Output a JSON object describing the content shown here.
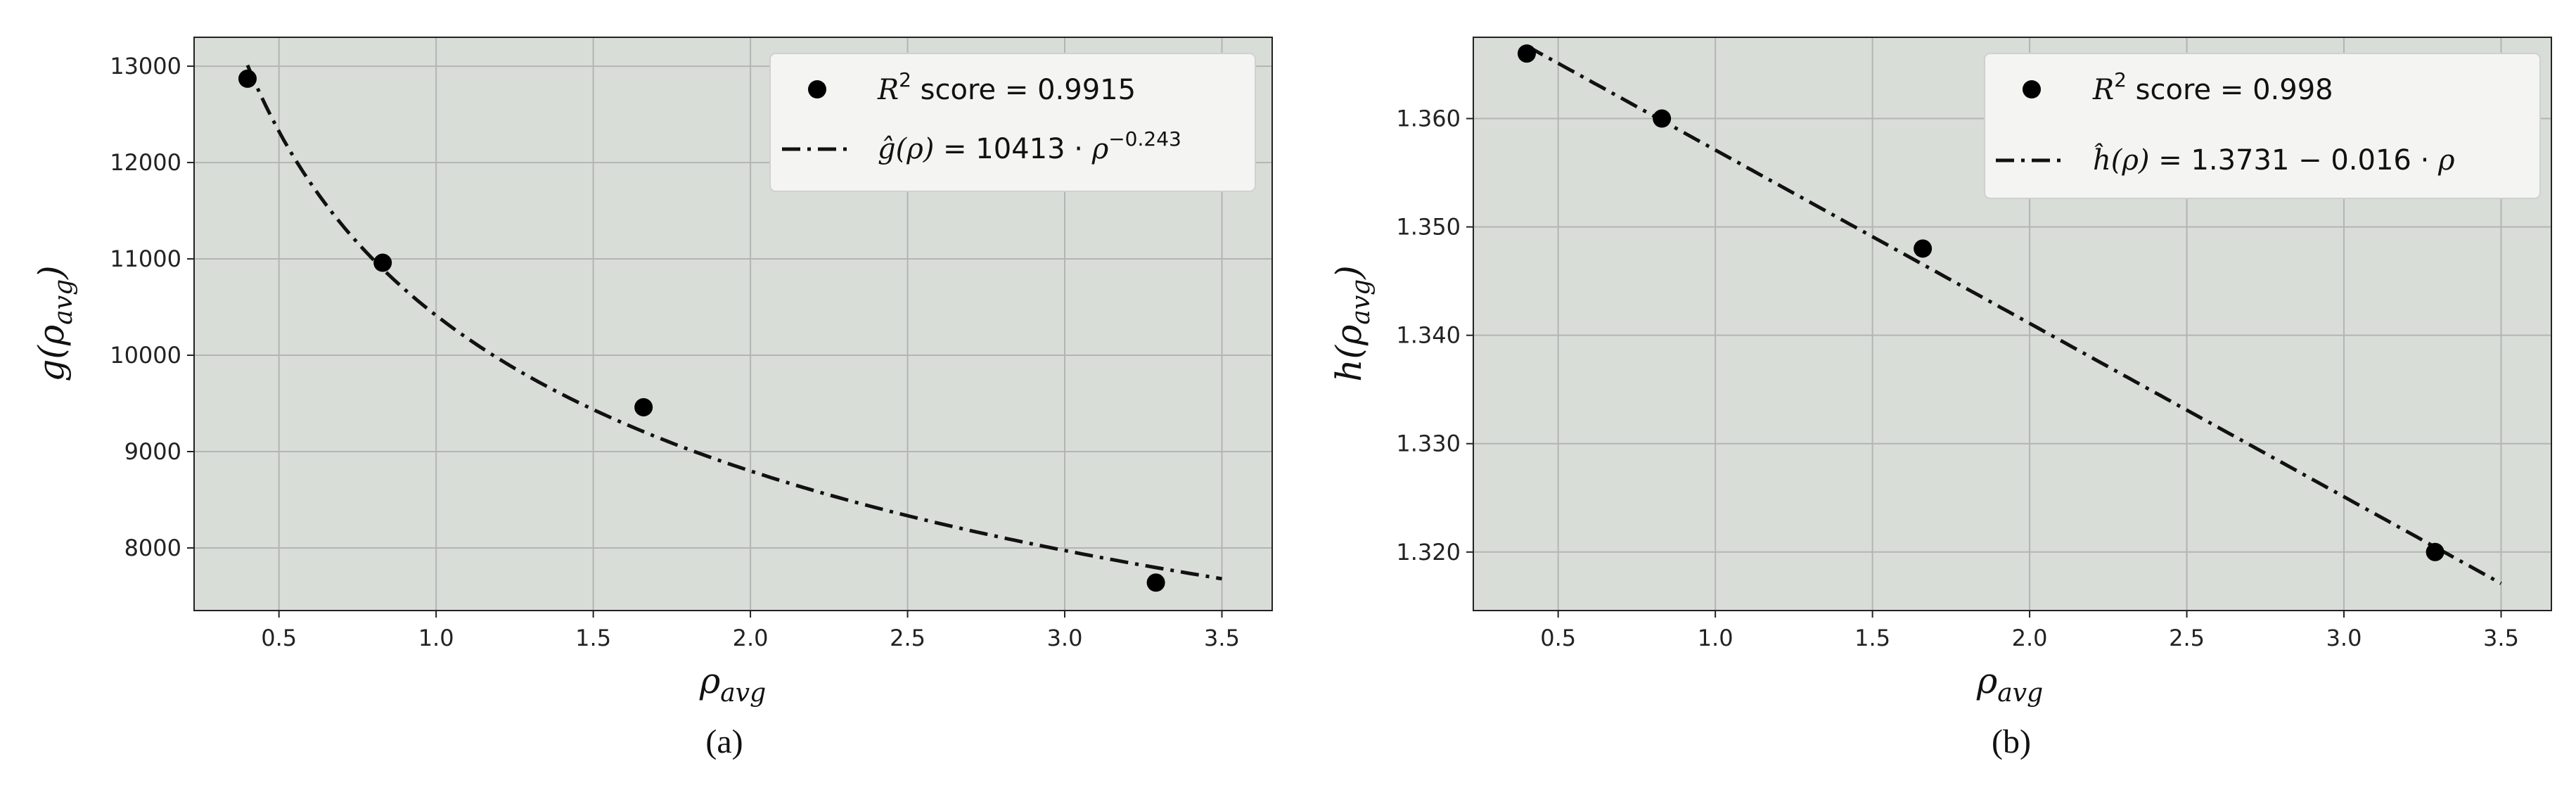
{
  "chart_data": [
    {
      "id": "a",
      "type": "scatter",
      "caption": "(a)",
      "xlabel": "ρavg",
      "ylabel": "g(ρavg)",
      "xlim": [
        0.23,
        3.66
      ],
      "ylim": [
        7350,
        13300
      ],
      "xticks": [
        0.5,
        1.0,
        1.5,
        2.0,
        2.5,
        3.0,
        3.5
      ],
      "xtick_labels": [
        "0.5",
        "1.0",
        "1.5",
        "2.0",
        "2.5",
        "3.0",
        "3.5"
      ],
      "yticks": [
        8000,
        9000,
        10000,
        11000,
        12000,
        13000
      ],
      "ytick_labels": [
        "8000",
        "9000",
        "10000",
        "11000",
        "12000",
        "13000"
      ],
      "grid": true,
      "legend_position": "top-right",
      "series": [
        {
          "kind": "points",
          "legend": "R2 score = 0.9915",
          "x": [
            0.4,
            0.83,
            1.66,
            3.29
          ],
          "y": [
            12870,
            10960,
            9460,
            7640
          ]
        },
        {
          "kind": "fit",
          "style": "dash-dot",
          "legend": "ĝ(ρ) = 10413 · ρ−0.243",
          "model": "power",
          "a": 10413,
          "b": -0.243,
          "x_range": [
            0.4,
            3.5
          ]
        }
      ]
    },
    {
      "id": "b",
      "type": "scatter",
      "caption": "(b)",
      "xlabel": "ρavg",
      "ylabel": "h(ρavg)",
      "xlim": [
        0.23,
        3.66
      ],
      "ylim": [
        1.3146,
        1.3675
      ],
      "xticks": [
        0.5,
        1.0,
        1.5,
        2.0,
        2.5,
        3.0,
        3.5
      ],
      "xtick_labels": [
        "0.5",
        "1.0",
        "1.5",
        "2.0",
        "2.5",
        "3.0",
        "3.5"
      ],
      "yticks": [
        1.32,
        1.33,
        1.34,
        1.35,
        1.36
      ],
      "ytick_labels": [
        "1.320",
        "1.330",
        "1.340",
        "1.350",
        "1.360"
      ],
      "grid": true,
      "legend_position": "top-right",
      "series": [
        {
          "kind": "points",
          "legend": "R2 score = 0.998",
          "x": [
            0.4,
            0.83,
            1.66,
            3.29
          ],
          "y": [
            1.366,
            1.36,
            1.348,
            1.32
          ]
        },
        {
          "kind": "fit",
          "style": "dash-dot",
          "legend": "ĥ(ρ) = 1.3731 − 0.016 · ρ",
          "model": "linear",
          "a": 1.3731,
          "b": -0.016,
          "x_range": [
            0.4,
            3.5
          ]
        }
      ]
    }
  ],
  "colors": {
    "plot_background": "#d8ddd8",
    "grid": "#b4b4b4",
    "marker": "#000000",
    "fit_line": "#111111",
    "legend_background": "#f4f4f2"
  }
}
